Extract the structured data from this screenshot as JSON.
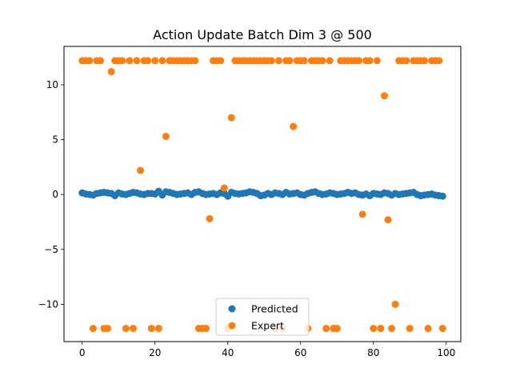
{
  "chart_data": {
    "type": "scatter",
    "title": "Action Update Batch Dim 3 @ 500",
    "xlabel": "",
    "ylabel": "",
    "xlim": [
      -5,
      104
    ],
    "ylim": [
      -13.4,
      13.5
    ],
    "xticks": [
      0,
      20,
      40,
      60,
      80,
      100
    ],
    "yticks": [
      10,
      5,
      0,
      -5,
      -10
    ],
    "ytick_labels": [
      "10",
      "5",
      "0",
      "−5",
      "−10"
    ],
    "grid": false,
    "legend_position": "lower-center",
    "series": [
      {
        "name": "Predicted",
        "color": "#1f77b4",
        "x": [
          0,
          1,
          2,
          3,
          4,
          5,
          6,
          7,
          8,
          9,
          10,
          11,
          12,
          13,
          14,
          15,
          16,
          17,
          18,
          19,
          20,
          21,
          22,
          23,
          24,
          25,
          26,
          27,
          28,
          29,
          30,
          31,
          32,
          33,
          34,
          35,
          36,
          37,
          38,
          39,
          40,
          41,
          42,
          43,
          44,
          45,
          46,
          47,
          48,
          49,
          50,
          51,
          52,
          53,
          54,
          55,
          56,
          57,
          58,
          59,
          60,
          61,
          62,
          63,
          64,
          65,
          66,
          67,
          68,
          69,
          70,
          71,
          72,
          73,
          74,
          75,
          76,
          77,
          78,
          79,
          80,
          81,
          82,
          83,
          84,
          85,
          86,
          87,
          88,
          89,
          90,
          91,
          92,
          93,
          94,
          95,
          96,
          97,
          98,
          99
        ],
        "y": [
          0.15,
          0.05,
          0.0,
          -0.05,
          0.1,
          0.15,
          0.2,
          0.15,
          0.1,
          -0.1,
          0.15,
          0.05,
          0.0,
          0.1,
          0.2,
          0.15,
          0.05,
          0.0,
          0.1,
          0.1,
          0.05,
          0.3,
          -0.05,
          0.25,
          0.2,
          0.1,
          0.0,
          0.05,
          0.1,
          0.15,
          0.0,
          0.2,
          0.25,
          0.1,
          0.0,
          0.05,
          0.1,
          0.0,
          0.15,
          0.1,
          -0.15,
          0.2,
          0.1,
          0.05,
          0.1,
          0.15,
          0.25,
          0.2,
          0.1,
          -0.1,
          -0.05,
          0.1,
          0.0,
          0.15,
          0.1,
          0.0,
          0.2,
          0.05,
          0.1,
          0.15,
          0.0,
          -0.05,
          0.1,
          0.2,
          0.25,
          0.1,
          0.0,
          0.05,
          0.15,
          0.1,
          0.0,
          0.05,
          0.1,
          0.2,
          0.1,
          0.15,
          0.0,
          -0.05,
          0.05,
          -0.1,
          0.1,
          0.05,
          0.0,
          0.15,
          0.1,
          -0.05,
          0.1,
          0.0,
          0.05,
          0.1,
          0.15,
          0.2,
          0.0,
          -0.1,
          -0.05,
          0.0,
          0.05,
          -0.05,
          -0.1,
          -0.15
        ]
      },
      {
        "name": "Expert",
        "color": "#ff7f0e",
        "x": [
          0,
          1,
          2,
          3,
          4,
          5,
          6,
          7,
          8,
          9,
          10,
          11,
          12,
          13,
          14,
          15,
          16,
          17,
          18,
          19,
          20,
          21,
          22,
          23,
          24,
          25,
          26,
          27,
          28,
          29,
          30,
          31,
          32,
          33,
          34,
          35,
          36,
          37,
          38,
          39,
          40,
          41,
          42,
          43,
          44,
          45,
          46,
          47,
          48,
          49,
          50,
          51,
          52,
          53,
          54,
          55,
          56,
          57,
          58,
          59,
          60,
          61,
          62,
          63,
          64,
          65,
          66,
          67,
          68,
          69,
          70,
          71,
          72,
          73,
          74,
          75,
          76,
          77,
          78,
          79,
          80,
          81,
          82,
          83,
          84,
          85,
          86,
          87,
          88,
          89,
          90,
          91,
          92,
          93,
          94,
          95,
          96,
          97,
          98,
          99
        ],
        "y": [
          12.2,
          12.2,
          12.2,
          -12.2,
          12.2,
          12.2,
          -12.2,
          -12.2,
          11.2,
          12.2,
          12.2,
          12.2,
          -12.2,
          12.2,
          -12.2,
          12.2,
          2.2,
          12.2,
          12.2,
          -12.2,
          12.2,
          -12.2,
          12.2,
          5.3,
          12.2,
          12.2,
          12.2,
          12.2,
          12.2,
          12.2,
          12.2,
          12.2,
          -12.2,
          -12.2,
          -12.2,
          -2.2,
          12.2,
          12.2,
          12.2,
          0.6,
          -12.2,
          7.0,
          12.2,
          12.2,
          12.2,
          12.2,
          12.2,
          12.2,
          12.2,
          12.2,
          12.2,
          12.2,
          12.2,
          -12.2,
          12.2,
          -12.2,
          12.2,
          12.2,
          6.2,
          12.2,
          12.2,
          12.2,
          -12.2,
          12.2,
          12.2,
          12.2,
          12.2,
          -12.2,
          12.2,
          -12.2,
          -12.2,
          12.2,
          12.2,
          12.2,
          12.2,
          12.2,
          12.2,
          -1.8,
          12.2,
          12.2,
          -12.2,
          12.2,
          -12.2,
          9.0,
          -2.3,
          -12.2,
          -10.0,
          12.2,
          12.2,
          12.2,
          -12.2,
          12.2,
          12.2,
          12.2,
          12.2,
          -12.2,
          12.2,
          12.2,
          12.2,
          -12.2
        ]
      }
    ]
  }
}
